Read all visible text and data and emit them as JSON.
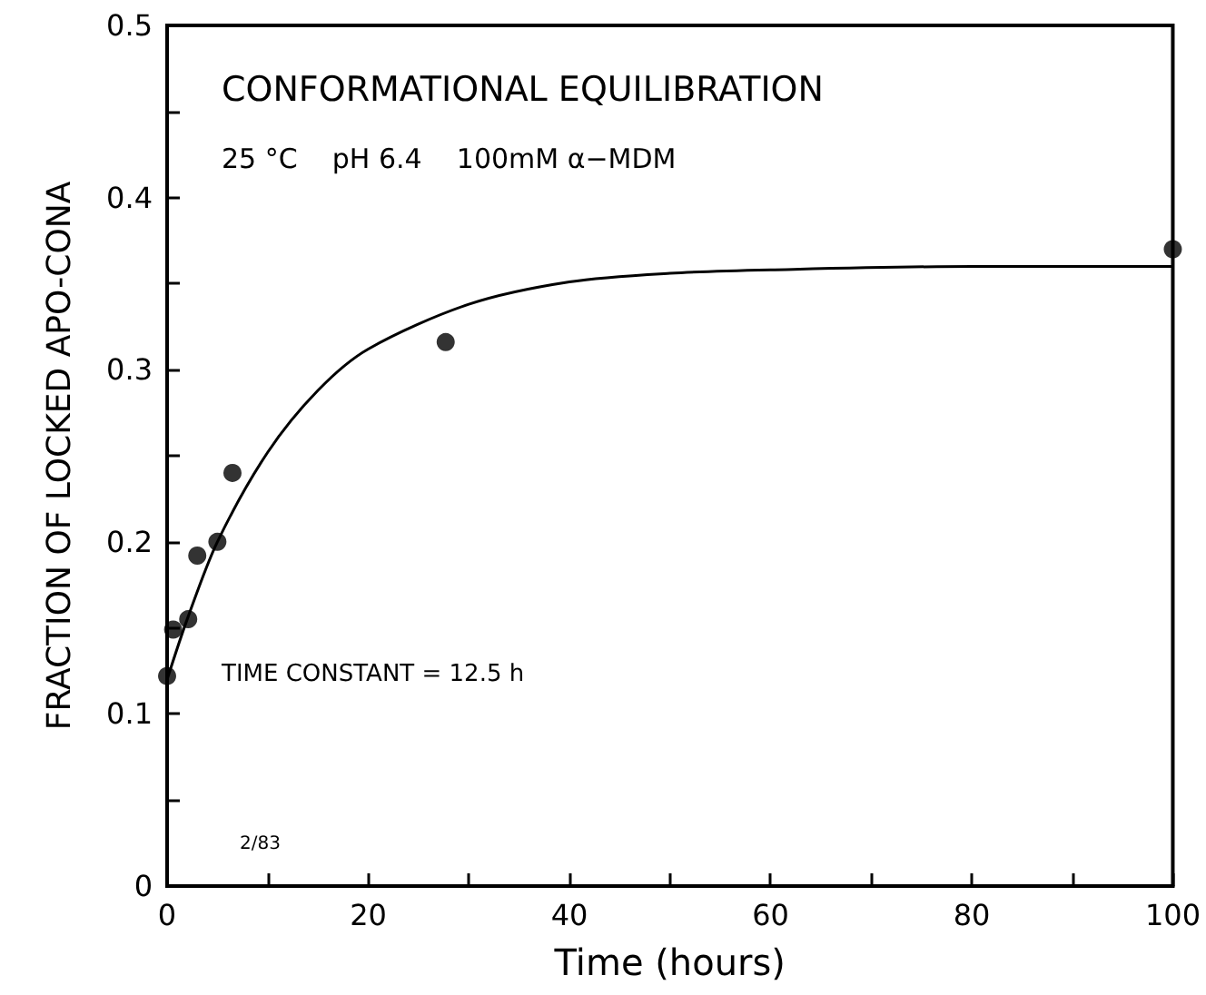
{
  "chart_data": {
    "type": "scatter",
    "xlabel": "Time (hours)",
    "ylabel": "FRACTION OF LOCKED APO-CONA",
    "annotations": [
      "CONFORMATIONAL EQUILIBRATION",
      "25 °C    pH 6.4    100mM α−MDM",
      "TIME CONSTANT = 12.5 h",
      "2/83"
    ],
    "series": [
      {
        "color": "#000000",
        "marker": "circle",
        "x": [
          0,
          0.6,
          2.1,
          3.0,
          5.0,
          6.5,
          27.7,
          100
        ],
        "values": [
          0.122,
          0.149,
          0.155,
          0.192,
          0.2,
          0.24,
          0.316,
          0.37
        ]
      },
      {
        "type": "line",
        "color": "#000000",
        "marker": "none",
        "line_style": "solid",
        "x": [
          0,
          2,
          5,
          10,
          15,
          20,
          30,
          40,
          50,
          60,
          80,
          100
        ],
        "values": [
          0.12,
          0.155,
          0.2,
          0.252,
          0.288,
          0.312,
          0.338,
          0.351,
          0.356,
          0.358,
          0.36,
          0.36
        ]
      }
    ],
    "xlim": [
      0,
      100
    ],
    "ylim": [
      0,
      0.5
    ],
    "xticks": [
      0,
      {
        "value": 10,
        "label": null
      },
      20,
      {
        "value": 30,
        "label": null
      },
      40,
      {
        "value": 50,
        "label": null
      },
      60,
      {
        "value": 70,
        "label": null
      },
      80,
      {
        "value": 90,
        "label": null
      },
      100
    ],
    "yticks": [
      0,
      {
        "value": 0.05,
        "label": null
      },
      0.1,
      {
        "value": 0.15,
        "label": null
      },
      0.2,
      {
        "value": 0.25,
        "label": null
      },
      0.3,
      {
        "value": 0.35,
        "label": null
      },
      0.4,
      {
        "value": 0.45,
        "label": null
      },
      0.5
    ],
    "grid": false
  }
}
